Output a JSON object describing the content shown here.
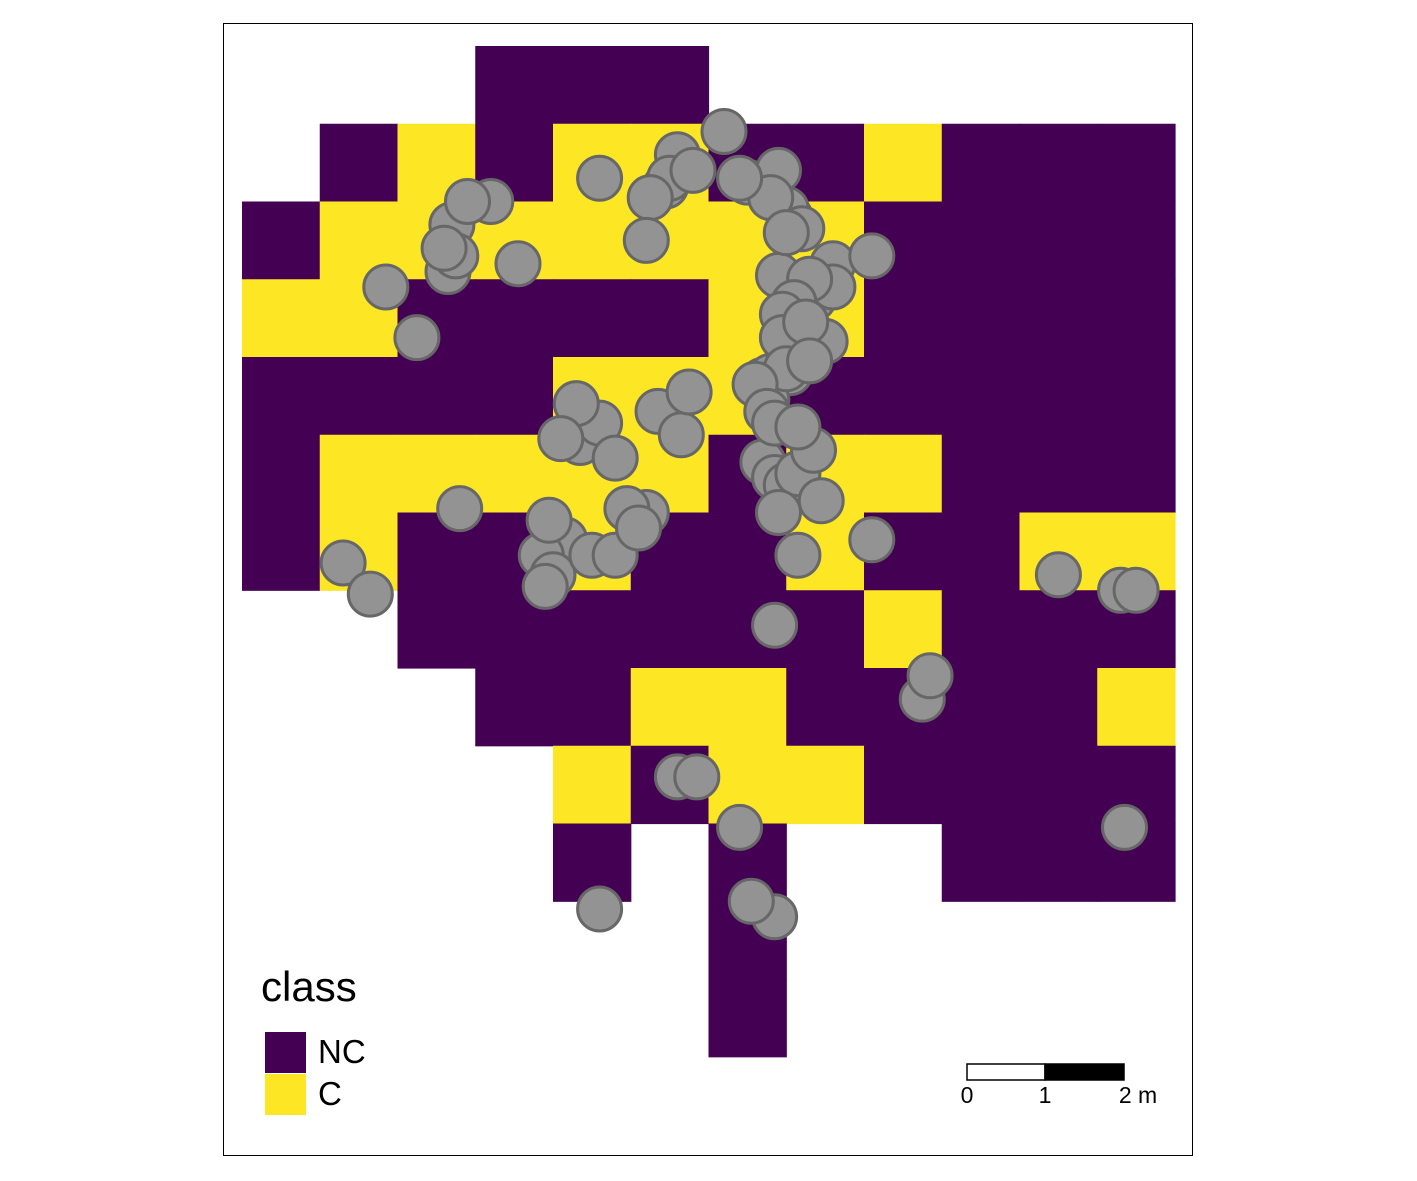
{
  "legend": {
    "title": "class",
    "items": [
      {
        "label": "NC",
        "color": "#440154"
      },
      {
        "label": "C",
        "color": "#FDE725"
      }
    ]
  },
  "scale_bar": {
    "labels": [
      "0",
      "1",
      "2 m"
    ],
    "unit": "m"
  },
  "colors": {
    "NC": "#440154",
    "C": "#FDE725",
    "point_fill": "#939393",
    "point_stroke": "#676767"
  },
  "raster": {
    "cell_size_m": 1,
    "rows": [
      "...NNN......",
      ".NCNCCNNCNNN",
      "NCCCCCCCNNNN",
      "CCNNNNCCNNNN",
      "NNNNCCCNNNNN",
      "NCCCCCNCCNNN",
      "NCNNCNNCNNCC",
      "..NNNNNNCNNN",
      "...NNCCNNNNC",
      "....CNCCNNNN",
      "....N.N..NNN",
      "......N.....",
      "......N....."
    ]
  },
  "points": [
    [
      6.2,
      1.1
    ],
    [
      4.6,
      1.7
    ],
    [
      5.6,
      1.4
    ],
    [
      5.45,
      1.8
    ],
    [
      5.5,
      1.7
    ],
    [
      5.8,
      1.6
    ],
    [
      5.25,
      1.95
    ],
    [
      6.5,
      1.75
    ],
    [
      6.9,
      1.6
    ],
    [
      7.05,
      2.2
    ],
    [
      7.0,
      2.1
    ],
    [
      6.8,
      1.95
    ],
    [
      5.2,
      2.5
    ],
    [
      6.4,
      1.7
    ],
    [
      7.6,
      2.8
    ],
    [
      8.1,
      2.7
    ],
    [
      3.2,
      2.0
    ],
    [
      2.7,
      2.3
    ],
    [
      2.9,
      2.0
    ],
    [
      2.65,
      2.9
    ],
    [
      2.75,
      2.7
    ],
    [
      2.6,
      2.6
    ],
    [
      3.55,
      2.8
    ],
    [
      1.85,
      3.1
    ],
    [
      2.25,
      3.75
    ],
    [
      2.8,
      5.95
    ],
    [
      1.3,
      6.65
    ],
    [
      1.65,
      7.05
    ],
    [
      4.35,
      5.1
    ],
    [
      4.6,
      4.85
    ],
    [
      4.8,
      5.3
    ],
    [
      4.3,
      4.6
    ],
    [
      4.1,
      5.05
    ],
    [
      5.35,
      4.7
    ],
    [
      5.65,
      5.0
    ],
    [
      5.75,
      4.45
    ],
    [
      5.2,
      6.0
    ],
    [
      4.0,
      6.75
    ],
    [
      4.15,
      6.35
    ],
    [
      3.85,
      6.55
    ],
    [
      3.95,
      6.1
    ],
    [
      4.0,
      6.8
    ],
    [
      3.9,
      6.95
    ],
    [
      4.5,
      6.55
    ],
    [
      4.8,
      6.55
    ],
    [
      4.95,
      5.95
    ],
    [
      5.1,
      6.2
    ],
    [
      6.7,
      4.3
    ],
    [
      7.05,
      4.2
    ],
    [
      7.05,
      4.0
    ],
    [
      7.5,
      3.8
    ],
    [
      7.2,
      3.55
    ],
    [
      7.0,
      3.4
    ],
    [
      7.35,
      3.25
    ],
    [
      7.6,
      3.1
    ],
    [
      6.9,
      2.95
    ],
    [
      7.2,
      2.35
    ],
    [
      7.0,
      2.4
    ],
    [
      7.3,
      3.0
    ],
    [
      7.1,
      3.3
    ],
    [
      6.95,
      3.45
    ],
    [
      6.95,
      3.75
    ],
    [
      7.25,
      3.55
    ],
    [
      6.8,
      4.25
    ],
    [
      6.75,
      4.55
    ],
    [
      6.7,
      5.35
    ],
    [
      6.85,
      5.55
    ],
    [
      7.0,
      5.65
    ],
    [
      7.15,
      5.5
    ],
    [
      7.35,
      5.2
    ],
    [
      7.45,
      5.85
    ],
    [
      6.9,
      6.0
    ],
    [
      7.0,
      4.15
    ],
    [
      7.3,
      4.05
    ],
    [
      6.6,
      4.35
    ],
    [
      6.75,
      4.7
    ],
    [
      6.85,
      4.85
    ],
    [
      7.15,
      4.9
    ],
    [
      8.1,
      6.35
    ],
    [
      7.15,
      6.55
    ],
    [
      6.85,
      7.45
    ],
    [
      10.5,
      6.8
    ],
    [
      11.3,
      7.0
    ],
    [
      11.5,
      7.0
    ],
    [
      8.75,
      8.4
    ],
    [
      8.85,
      8.1
    ],
    [
      5.6,
      9.4
    ],
    [
      5.85,
      9.4
    ],
    [
      6.4,
      10.05
    ],
    [
      4.6,
      11.1
    ],
    [
      6.85,
      11.2
    ],
    [
      6.55,
      11.0
    ],
    [
      11.35,
      10.05
    ]
  ]
}
